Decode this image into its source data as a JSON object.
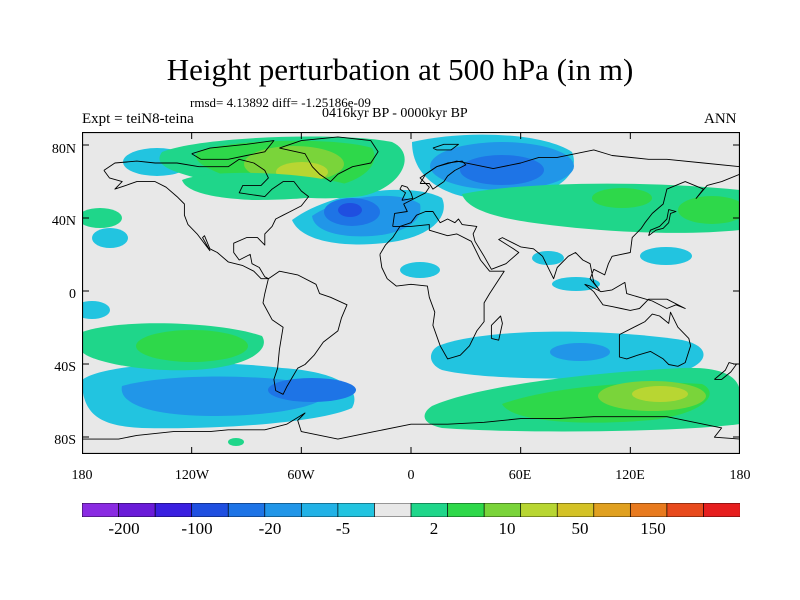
{
  "title": "Height perturbation at 500 hPa (in m)",
  "stats": "rmsd= 4.13892 diff= -1.25186e-09",
  "period": "0416kyr BP - 0000kyr BP",
  "experiment": "Expt = teiN8-teina",
  "season": "ANN",
  "lat_labels": [
    "80N",
    "40N",
    "0",
    "40S",
    "80S"
  ],
  "lon_labels": [
    "180",
    "120W",
    "60W",
    "0",
    "60E",
    "120E",
    "180"
  ],
  "colorbar": {
    "tick_labels": [
      "-200",
      "-100",
      "-20",
      "-5",
      "2",
      "10",
      "50",
      "150"
    ],
    "colors": [
      "#8a2be2",
      "#6a1bd8",
      "#3a1fe0",
      "#1f4fe0",
      "#1e74e6",
      "#2196e8",
      "#22b2e6",
      "#22c4e0",
      "#e8e8e8",
      "#1fd68a",
      "#2ed84a",
      "#7ad43a",
      "#b8d632",
      "#d4c226",
      "#e0a020",
      "#e87a1e",
      "#e84a1c",
      "#e61e1e"
    ]
  },
  "field_colors": {
    "background": "#e8e8e8",
    "neg_light": "#22c4e0",
    "neg_mid": "#2196e8",
    "neg_strong": "#1e74e6",
    "neg_core": "#1f4fe0",
    "pos_light": "#1fd68a",
    "pos_mid": "#2ed84a",
    "pos_strong": "#7ad43a",
    "pos_core": "#b8d632",
    "pos_peak": "#d4c226"
  }
}
